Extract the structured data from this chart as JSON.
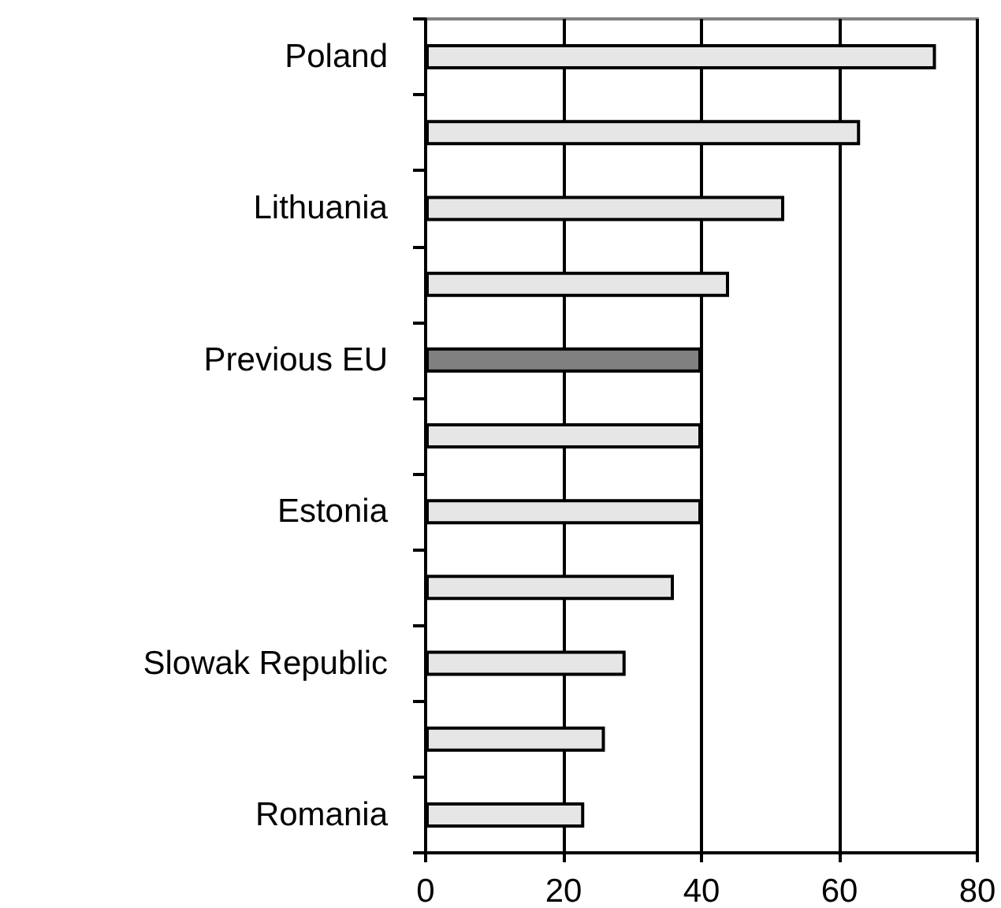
{
  "chart_data": {
    "type": "bar",
    "orientation": "horizontal",
    "categories": [
      "Poland",
      null,
      "Lithuania",
      null,
      "Previous EU",
      null,
      "Estonia",
      null,
      "Slowak Republic",
      null,
      "Romania"
    ],
    "values": [
      74,
      63,
      52,
      44,
      40,
      40,
      40,
      36,
      29,
      26,
      23
    ],
    "colors": [
      "#e6e6e6",
      "#e6e6e6",
      "#e6e6e6",
      "#e6e6e6",
      "#808080",
      "#e6e6e6",
      "#e6e6e6",
      "#e6e6e6",
      "#e6e6e6",
      "#e6e6e6",
      "#e6e6e6"
    ],
    "xlim": [
      0,
      80
    ],
    "xticks": [
      0,
      20,
      40,
      60,
      80
    ],
    "grid": "x"
  }
}
